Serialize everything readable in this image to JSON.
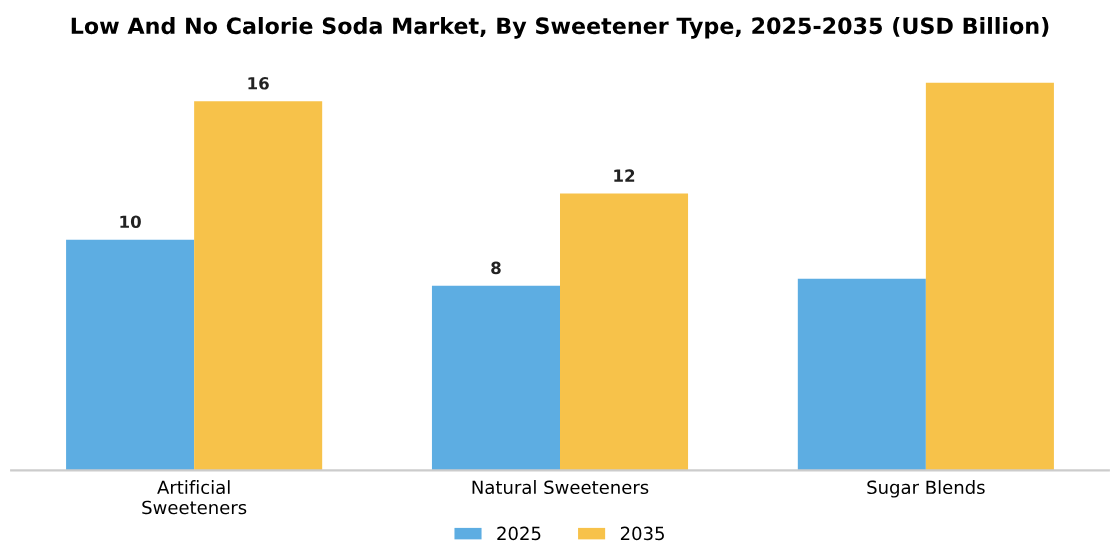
{
  "chart_data": {
    "type": "bar",
    "title": "Low And No Calorie Soda Market, By Sweetener Type, 2025-2035 (USD Billion)",
    "categories": [
      "Artificial\nSweeteners",
      "Natural Sweeteners",
      "Sugar Blends"
    ],
    "series": [
      {
        "name": "2025",
        "color": "#5dade2",
        "values": [
          10,
          8,
          8.3
        ],
        "value_labels": [
          "10",
          "8",
          null
        ]
      },
      {
        "name": "2035",
        "color": "#f7c24a",
        "values": [
          16,
          12,
          16.8
        ],
        "value_labels": [
          "16",
          "12",
          null
        ]
      }
    ],
    "tick_labels": "x",
    "legend": "bottom",
    "grid": false
  }
}
